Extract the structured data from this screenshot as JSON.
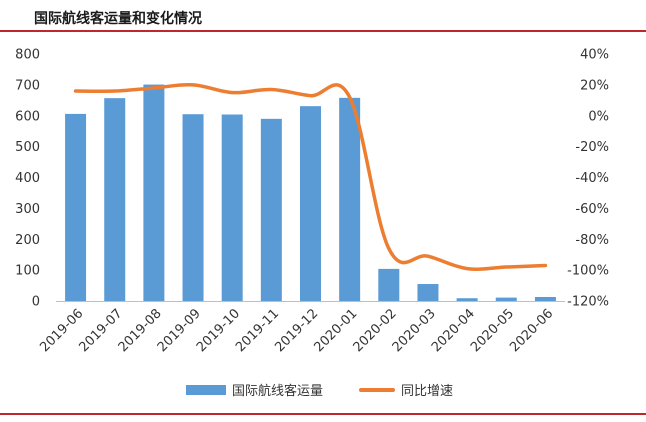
{
  "colors": {
    "rule": "#c0262d",
    "bar": "#5b9bd5",
    "line": "#ed7d31"
  },
  "title": "国际航线客运量和变化情况",
  "chart_data": {
    "type": "bar",
    "categories": [
      "2019-06",
      "2019-07",
      "2019-08",
      "2019-09",
      "2019-10",
      "2019-11",
      "2019-12",
      "2020-01",
      "2020-02",
      "2020-03",
      "2020-04",
      "2020-05",
      "2020-06"
    ],
    "series": [
      {
        "name": "国际航线客运量",
        "type": "bar",
        "axis": "left",
        "values": [
          606,
          657,
          701,
          605,
          604,
          590,
          631,
          658,
          104,
          55,
          9,
          11,
          13
        ]
      },
      {
        "name": "同比增速",
        "type": "line",
        "axis": "right",
        "smooth": true,
        "values": [
          16,
          16,
          18,
          20,
          15,
          17,
          13,
          12,
          -86,
          -91,
          -99,
          -98,
          -97
        ]
      }
    ],
    "y_left": {
      "ylim": [
        0,
        800
      ],
      "ticks": [
        "0",
        "100",
        "200",
        "300",
        "400",
        "500",
        "600",
        "700",
        "800"
      ]
    },
    "y_right": {
      "ylim": [
        -120,
        40
      ],
      "ticks": [
        "-120%",
        "-100%",
        "-80%",
        "-60%",
        "-40%",
        "-20%",
        "0%",
        "20%",
        "40%"
      ]
    },
    "grid": false,
    "legend": "bottom"
  }
}
